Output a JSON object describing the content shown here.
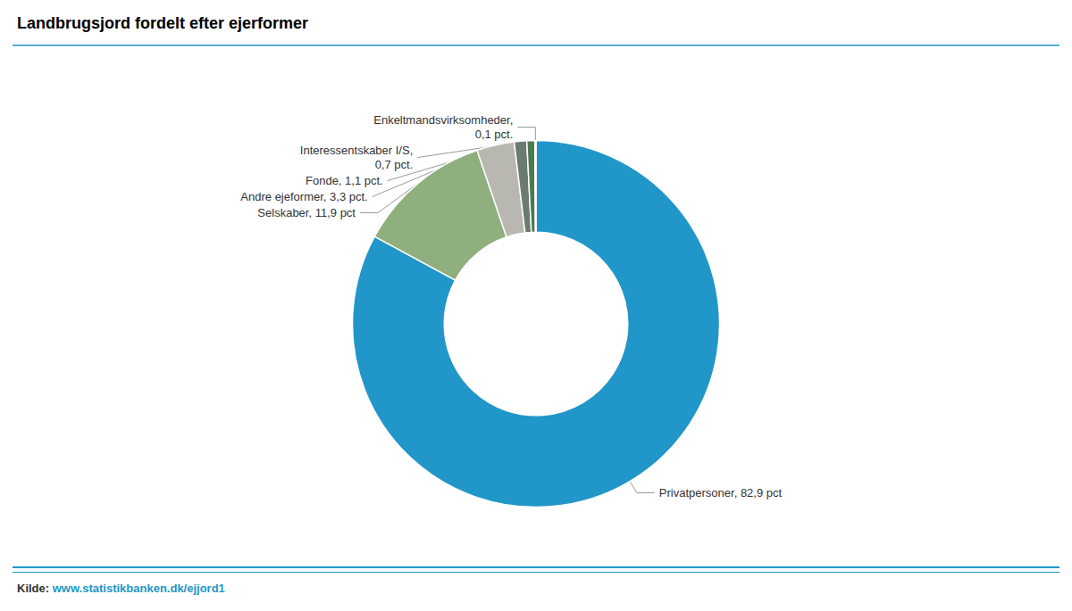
{
  "chart_data": {
    "type": "pie",
    "title": "Landbrugsjord fordelt efter ejerformer",
    "categories": [
      "Privatpersoner, 82,9 pct",
      "Selskaber, 11,9 pct",
      "Andre ejeformer, 3,3 pct.",
      "Fonde, 1,1 pct.",
      "Interessentskaber I/S,\n0,7 pct.",
      "Enkeltmandsvirksomheder,\n0,1 pct."
    ],
    "values": [
      82.9,
      11.9,
      3.3,
      1.1,
      0.7,
      0.1
    ],
    "colors": [
      "#2196C8",
      "#8FAF7E",
      "#B8B8B0",
      "#6B7B72",
      "#4A7A50",
      "#2E6B2E"
    ],
    "annotations": [
      "Kilde: ",
      "www.statistikbanken.dk/ejjord1"
    ]
  }
}
